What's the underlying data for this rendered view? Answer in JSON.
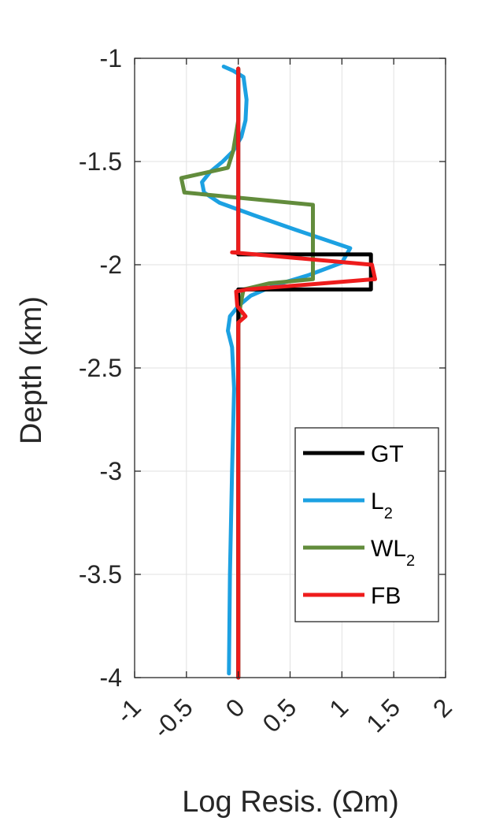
{
  "chart_data": {
    "type": "line",
    "xlabel": "Log Resis. (Ωm)",
    "ylabel": "Depth (km)",
    "xlim": [
      -1,
      2
    ],
    "ylim": [
      -4,
      -1
    ],
    "xticks": [
      -1,
      -0.5,
      0,
      0.5,
      1,
      1.5,
      2
    ],
    "xtick_labels": [
      "-1",
      "-0.5",
      "0",
      "0.5",
      "1",
      "1.5",
      "2"
    ],
    "yticks": [
      -1,
      -1.5,
      -2,
      -2.5,
      -3,
      -3.5,
      -4
    ],
    "ytick_labels": [
      "-1",
      "-1.5",
      "-2",
      "-2.5",
      "-3",
      "-3.5",
      "-4"
    ],
    "grid": true,
    "legend_position": "lower-right",
    "series": [
      {
        "name": "GT",
        "name_main": "GT",
        "name_sub": "",
        "color": "#000000",
        "points": [
          [
            0.0,
            -1.05
          ],
          [
            0.0,
            -1.95
          ],
          [
            1.28,
            -1.95
          ],
          [
            1.28,
            -2.12
          ],
          [
            0.0,
            -2.12
          ],
          [
            0.0,
            -4.0
          ]
        ]
      },
      {
        "name": "L2",
        "name_main": "L",
        "name_sub": "2",
        "color": "#1ca1e2",
        "points": [
          [
            -0.14,
            -1.04
          ],
          [
            -0.05,
            -1.06
          ],
          [
            0.05,
            -1.09
          ],
          [
            0.08,
            -1.2
          ],
          [
            0.07,
            -1.3
          ],
          [
            0.03,
            -1.38
          ],
          [
            -0.05,
            -1.45
          ],
          [
            -0.15,
            -1.5
          ],
          [
            -0.27,
            -1.55
          ],
          [
            -0.35,
            -1.6
          ],
          [
            -0.33,
            -1.65
          ],
          [
            -0.18,
            -1.7
          ],
          [
            0.15,
            -1.76
          ],
          [
            0.55,
            -1.83
          ],
          [
            1.08,
            -1.92
          ],
          [
            1.0,
            -1.99
          ],
          [
            0.68,
            -2.05
          ],
          [
            0.35,
            -2.1
          ],
          [
            0.12,
            -2.15
          ],
          [
            0.0,
            -2.2
          ],
          [
            -0.08,
            -2.25
          ],
          [
            -0.1,
            -2.32
          ],
          [
            -0.06,
            -2.4
          ],
          [
            -0.04,
            -2.6
          ],
          [
            -0.06,
            -3.0
          ],
          [
            -0.08,
            -3.5
          ],
          [
            -0.09,
            -3.98
          ]
        ]
      },
      {
        "name": "WL2",
        "name_main": "WL",
        "name_sub": "2",
        "color": "#628c3c",
        "points": [
          [
            0.0,
            -1.05
          ],
          [
            0.0,
            -1.3
          ],
          [
            -0.05,
            -1.45
          ],
          [
            -0.1,
            -1.53
          ],
          [
            -0.55,
            -1.58
          ],
          [
            -0.52,
            -1.65
          ],
          [
            0.72,
            -1.71
          ],
          [
            0.72,
            -2.07
          ],
          [
            0.3,
            -2.09
          ],
          [
            0.05,
            -2.12
          ],
          [
            0.02,
            -2.2
          ],
          [
            0.0,
            -2.3
          ],
          [
            0.0,
            -4.0
          ]
        ]
      },
      {
        "name": "FB",
        "name_main": "FB",
        "name_sub": "",
        "color": "#ee1c1c",
        "points": [
          [
            0.0,
            -1.05
          ],
          [
            0.0,
            -1.94
          ],
          [
            -0.06,
            -1.94
          ],
          [
            1.29,
            -2.0
          ],
          [
            1.32,
            -2.07
          ],
          [
            0.08,
            -2.12
          ],
          [
            -0.02,
            -2.13
          ],
          [
            -0.01,
            -2.2
          ],
          [
            0.07,
            -2.25
          ],
          [
            0.0,
            -2.28
          ],
          [
            0.0,
            -4.0
          ]
        ]
      }
    ]
  }
}
